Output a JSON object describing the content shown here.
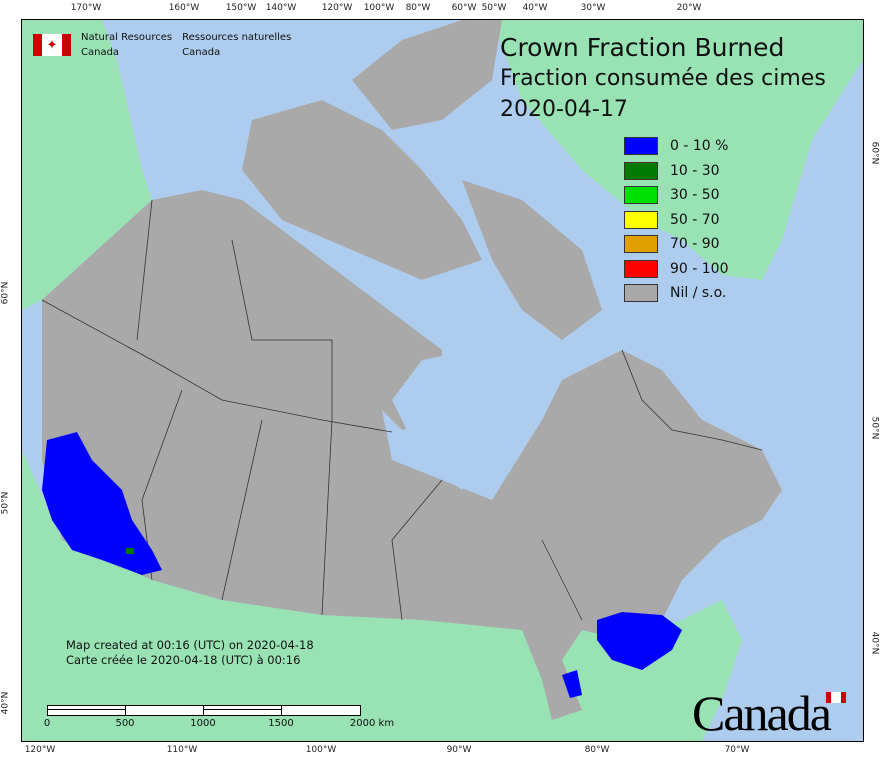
{
  "map": {
    "title_en": "Crown Fraction Burned",
    "title_fr": "Fraction consumée des cimes",
    "date": "2020-04-17",
    "colors": {
      "water": "#aecdee",
      "land": "#98e2b4",
      "canada": "#a9a9a9",
      "border": "#333333"
    }
  },
  "header": {
    "org_en_line1": "Natural Resources",
    "org_en_line2": "Canada",
    "org_fr_line1": "Ressources naturelles",
    "org_fr_line2": "Canada"
  },
  "axes": {
    "top": [
      "170°W",
      "160°W",
      "150°W",
      "140°W",
      "120°W",
      "100°W",
      "80°W",
      "60°W",
      "50°W",
      "40°W",
      "30°W",
      "20°W"
    ],
    "bottom": [
      "120°W",
      "110°W",
      "100°W",
      "90°W",
      "80°W",
      "70°W"
    ],
    "left": [
      "60°N",
      "50°N",
      "40°N"
    ],
    "right": [
      "60°N",
      "50°N",
      "40°N"
    ]
  },
  "legend": [
    {
      "label": "0 - 10 %",
      "color": "#0000ff"
    },
    {
      "label": "10 - 30",
      "color": "#007a00"
    },
    {
      "label": "30 - 50",
      "color": "#00e000"
    },
    {
      "label": "50 - 70",
      "color": "#ffff00"
    },
    {
      "label": "70 - 90",
      "color": "#e0a000"
    },
    {
      "label": "90 - 100",
      "color": "#ff0000"
    },
    {
      "label": "Nil / s.o.",
      "color": "#a9a9a9"
    }
  ],
  "credits": {
    "line_en": "Map created at 00:16 (UTC) on 2020-04-18",
    "line_fr": "Carte créée le 2020-04-18 (UTC) à 00:16"
  },
  "scale_bar": {
    "labels": [
      "0",
      "500",
      "1000",
      "1500",
      "2000 km"
    ]
  },
  "wordmark": "Canada"
}
